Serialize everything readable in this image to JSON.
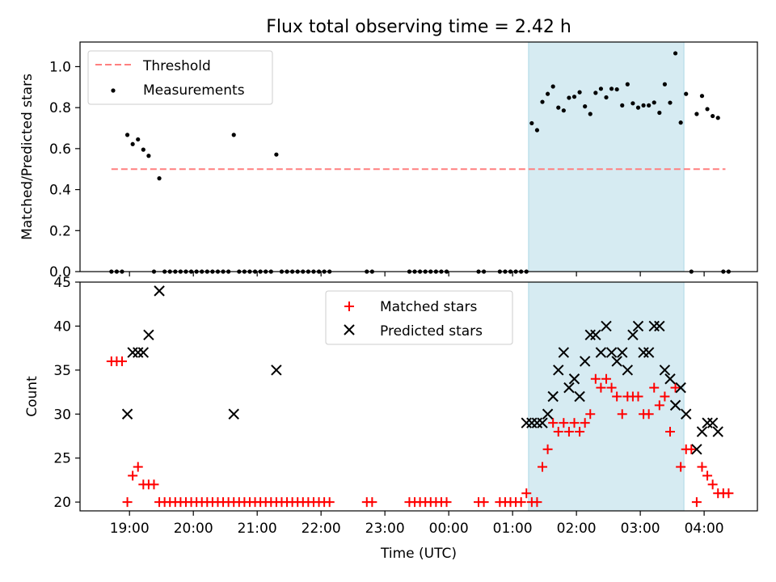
{
  "chart_data": [
    {
      "type": "scatter",
      "title": "Flux total observing time = 2.42 h",
      "ylabel": "Matched/Predicted stars",
      "ylim": [
        0,
        1.12
      ],
      "yticks": [
        "0.0",
        "0.2",
        "0.4",
        "0.6",
        "0.8",
        "1.0"
      ],
      "shaded_interval": [
        "01:15",
        "03:41"
      ],
      "shade_color": "#add8e6",
      "legend": {
        "placement": "upper-left",
        "entries": [
          "Threshold",
          "Measurements"
        ]
      },
      "threshold": {
        "name": "Threshold",
        "value": 0.5,
        "x_start": "18:43",
        "x_end": "04:20",
        "color": "#ff7f7f",
        "style": "dashed"
      },
      "series": [
        {
          "name": "Measurements",
          "color": "#000000",
          "marker": "dot",
          "points": [
            [
              "18:43",
              0
            ],
            [
              "18:48",
              0
            ],
            [
              "18:53",
              0
            ],
            [
              "18:58",
              0.667
            ],
            [
              "19:03",
              0.622
            ],
            [
              "19:08",
              0.645
            ],
            [
              "19:13",
              0.595
            ],
            [
              "19:18",
              0.565
            ],
            [
              "19:23",
              0
            ],
            [
              "19:28",
              0.455
            ],
            [
              "19:33",
              0
            ],
            [
              "19:38",
              0
            ],
            [
              "19:43",
              0
            ],
            [
              "19:48",
              0
            ],
            [
              "19:53",
              0
            ],
            [
              "19:58",
              0
            ],
            [
              "20:03",
              0
            ],
            [
              "20:08",
              0
            ],
            [
              "20:13",
              0
            ],
            [
              "20:18",
              0
            ],
            [
              "20:23",
              0
            ],
            [
              "20:28",
              0
            ],
            [
              "20:33",
              0
            ],
            [
              "20:38",
              0.667
            ],
            [
              "20:43",
              0
            ],
            [
              "20:48",
              0
            ],
            [
              "20:53",
              0
            ],
            [
              "20:58",
              0
            ],
            [
              "21:03",
              0
            ],
            [
              "21:08",
              0
            ],
            [
              "21:13",
              0
            ],
            [
              "21:18",
              0.571
            ],
            [
              "21:23",
              0
            ],
            [
              "21:28",
              0
            ],
            [
              "21:33",
              0
            ],
            [
              "21:38",
              0
            ],
            [
              "21:43",
              0
            ],
            [
              "21:48",
              0
            ],
            [
              "21:53",
              0
            ],
            [
              "21:58",
              0
            ],
            [
              "22:03",
              0
            ],
            [
              "22:08",
              0
            ],
            [
              "22:43",
              0
            ],
            [
              "22:48",
              0
            ],
            [
              "23:23",
              0
            ],
            [
              "23:28",
              0
            ],
            [
              "23:33",
              0
            ],
            [
              "23:38",
              0
            ],
            [
              "23:43",
              0
            ],
            [
              "23:48",
              0
            ],
            [
              "23:53",
              0
            ],
            [
              "23:58",
              0
            ],
            [
              "00:28",
              0
            ],
            [
              "00:33",
              0
            ],
            [
              "00:48",
              0
            ],
            [
              "00:53",
              0
            ],
            [
              "00:58",
              0
            ],
            [
              "01:03",
              0
            ],
            [
              "01:08",
              0
            ],
            [
              "01:13",
              0
            ],
            [
              "01:18",
              0.724
            ],
            [
              "01:23",
              0.69
            ],
            [
              "01:28",
              0.828
            ],
            [
              "01:33",
              0.867
            ],
            [
              "01:38",
              0.903
            ],
            [
              "01:43",
              0.8
            ],
            [
              "01:48",
              0.786
            ],
            [
              "01:53",
              0.848
            ],
            [
              "01:58",
              0.853
            ],
            [
              "02:03",
              0.875
            ],
            [
              "02:08",
              0.806
            ],
            [
              "02:13",
              0.769
            ],
            [
              "02:18",
              0.872
            ],
            [
              "02:23",
              0.892
            ],
            [
              "02:28",
              0.85
            ],
            [
              "02:33",
              0.892
            ],
            [
              "02:38",
              0.889
            ],
            [
              "02:43",
              0.811
            ],
            [
              "02:48",
              0.914
            ],
            [
              "02:53",
              0.821
            ],
            [
              "02:58",
              0.8
            ],
            [
              "03:03",
              0.811
            ],
            [
              "03:08",
              0.811
            ],
            [
              "03:13",
              0.825
            ],
            [
              "03:18",
              0.775
            ],
            [
              "03:23",
              0.914
            ],
            [
              "03:28",
              0.824
            ],
            [
              "03:33",
              1.065
            ],
            [
              "03:38",
              0.727
            ],
            [
              "03:43",
              0.867
            ],
            [
              "03:48",
              0
            ],
            [
              "03:53",
              0.769
            ],
            [
              "03:58",
              0.857
            ],
            [
              "04:03",
              0.793
            ],
            [
              "04:08",
              0.759
            ],
            [
              "04:13",
              0.75
            ],
            [
              "04:18",
              0
            ],
            [
              "04:23",
              0
            ]
          ]
        }
      ]
    },
    {
      "type": "scatter",
      "xlabel": "Time (UTC)",
      "ylabel": "Count",
      "ylim": [
        19,
        45
      ],
      "yticks": [
        "20",
        "25",
        "30",
        "35",
        "40",
        "45"
      ],
      "xticks": [
        "19:00",
        "20:00",
        "21:00",
        "22:00",
        "23:00",
        "00:00",
        "01:00",
        "02:00",
        "03:00",
        "04:00"
      ],
      "shaded_interval": [
        "01:15",
        "03:41"
      ],
      "shade_color": "#add8e6",
      "legend": {
        "placement": "upper-center",
        "entries": [
          "Matched stars",
          "Predicted stars"
        ]
      },
      "series": [
        {
          "name": "Matched stars",
          "color": "#ff0000",
          "marker": "plus",
          "points": [
            [
              "18:43",
              36
            ],
            [
              "18:48",
              36
            ],
            [
              "18:53",
              36
            ],
            [
              "18:58",
              20
            ],
            [
              "19:03",
              23
            ],
            [
              "19:08",
              24
            ],
            [
              "19:13",
              22
            ],
            [
              "19:18",
              22
            ],
            [
              "19:23",
              22
            ],
            [
              "19:28",
              20
            ],
            [
              "19:33",
              20
            ],
            [
              "19:38",
              20
            ],
            [
              "19:43",
              20
            ],
            [
              "19:48",
              20
            ],
            [
              "19:53",
              20
            ],
            [
              "19:58",
              20
            ],
            [
              "20:03",
              20
            ],
            [
              "20:08",
              20
            ],
            [
              "20:13",
              20
            ],
            [
              "20:18",
              20
            ],
            [
              "20:23",
              20
            ],
            [
              "20:28",
              20
            ],
            [
              "20:33",
              20
            ],
            [
              "20:38",
              20
            ],
            [
              "20:43",
              20
            ],
            [
              "20:48",
              20
            ],
            [
              "20:53",
              20
            ],
            [
              "20:58",
              20
            ],
            [
              "21:03",
              20
            ],
            [
              "21:08",
              20
            ],
            [
              "21:13",
              20
            ],
            [
              "21:18",
              20
            ],
            [
              "21:23",
              20
            ],
            [
              "21:28",
              20
            ],
            [
              "21:33",
              20
            ],
            [
              "21:38",
              20
            ],
            [
              "21:43",
              20
            ],
            [
              "21:48",
              20
            ],
            [
              "21:53",
              20
            ],
            [
              "21:58",
              20
            ],
            [
              "22:03",
              20
            ],
            [
              "22:08",
              20
            ],
            [
              "22:43",
              20
            ],
            [
              "22:48",
              20
            ],
            [
              "23:23",
              20
            ],
            [
              "23:28",
              20
            ],
            [
              "23:33",
              20
            ],
            [
              "23:38",
              20
            ],
            [
              "23:43",
              20
            ],
            [
              "23:48",
              20
            ],
            [
              "23:53",
              20
            ],
            [
              "23:58",
              20
            ],
            [
              "00:28",
              20
            ],
            [
              "00:33",
              20
            ],
            [
              "00:48",
              20
            ],
            [
              "00:53",
              20
            ],
            [
              "00:58",
              20
            ],
            [
              "01:03",
              20
            ],
            [
              "01:08",
              20
            ],
            [
              "01:13",
              21
            ],
            [
              "01:18",
              20
            ],
            [
              "01:23",
              20
            ],
            [
              "01:28",
              24
            ],
            [
              "01:33",
              26
            ],
            [
              "01:38",
              29
            ],
            [
              "01:43",
              28
            ],
            [
              "01:48",
              29
            ],
            [
              "01:53",
              28
            ],
            [
              "01:58",
              29
            ],
            [
              "02:03",
              28
            ],
            [
              "02:08",
              29
            ],
            [
              "02:13",
              30
            ],
            [
              "02:18",
              34
            ],
            [
              "02:23",
              33
            ],
            [
              "02:28",
              34
            ],
            [
              "02:33",
              33
            ],
            [
              "02:38",
              32
            ],
            [
              "02:43",
              30
            ],
            [
              "02:48",
              32
            ],
            [
              "02:53",
              32
            ],
            [
              "02:58",
              32
            ],
            [
              "03:03",
              30
            ],
            [
              "03:08",
              30
            ],
            [
              "03:13",
              33
            ],
            [
              "03:18",
              31
            ],
            [
              "03:23",
              32
            ],
            [
              "03:28",
              28
            ],
            [
              "03:33",
              33
            ],
            [
              "03:38",
              24
            ],
            [
              "03:43",
              26
            ],
            [
              "03:48",
              26
            ],
            [
              "03:53",
              20
            ],
            [
              "03:58",
              24
            ],
            [
              "04:03",
              23
            ],
            [
              "04:08",
              22
            ],
            [
              "04:13",
              21
            ],
            [
              "04:18",
              21
            ],
            [
              "04:23",
              21
            ]
          ]
        },
        {
          "name": "Predicted stars",
          "color": "#000000",
          "marker": "x",
          "points": [
            [
              "18:58",
              30
            ],
            [
              "19:03",
              37
            ],
            [
              "19:08",
              37
            ],
            [
              "19:13",
              37
            ],
            [
              "19:18",
              39
            ],
            [
              "19:28",
              44
            ],
            [
              "20:38",
              30
            ],
            [
              "21:18",
              35
            ],
            [
              "01:13",
              29
            ],
            [
              "01:18",
              29
            ],
            [
              "01:23",
              29
            ],
            [
              "01:28",
              29
            ],
            [
              "01:33",
              30
            ],
            [
              "01:38",
              32
            ],
            [
              "01:43",
              35
            ],
            [
              "01:48",
              37
            ],
            [
              "01:53",
              33
            ],
            [
              "01:58",
              34
            ],
            [
              "02:03",
              32
            ],
            [
              "02:08",
              36
            ],
            [
              "02:13",
              39
            ],
            [
              "02:18",
              39
            ],
            [
              "02:23",
              37
            ],
            [
              "02:28",
              40
            ],
            [
              "02:33",
              37
            ],
            [
              "02:38",
              36
            ],
            [
              "02:43",
              37
            ],
            [
              "02:48",
              35
            ],
            [
              "02:53",
              39
            ],
            [
              "02:58",
              40
            ],
            [
              "03:03",
              37
            ],
            [
              "03:08",
              37
            ],
            [
              "03:13",
              40
            ],
            [
              "03:18",
              40
            ],
            [
              "03:23",
              35
            ],
            [
              "03:28",
              34
            ],
            [
              "03:33",
              31
            ],
            [
              "03:38",
              33
            ],
            [
              "03:43",
              30
            ],
            [
              "03:53",
              26
            ],
            [
              "03:58",
              28
            ],
            [
              "04:03",
              29
            ],
            [
              "04:08",
              29
            ],
            [
              "04:13",
              28
            ]
          ]
        }
      ]
    }
  ]
}
